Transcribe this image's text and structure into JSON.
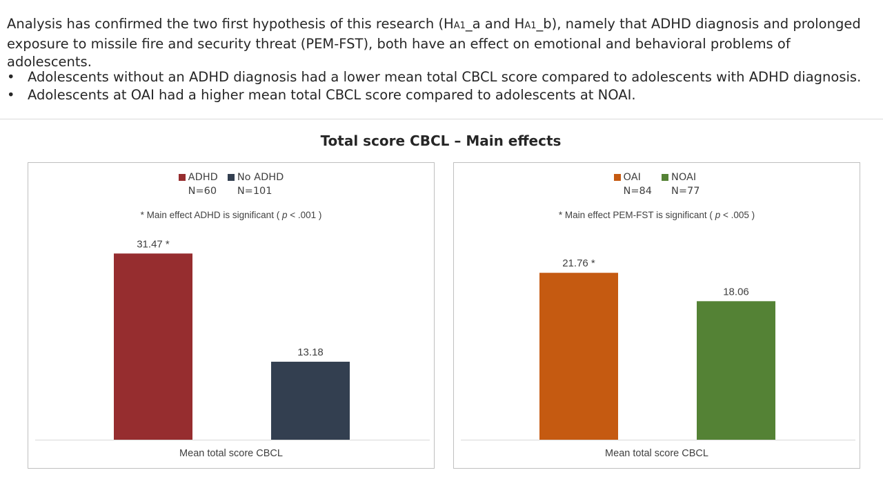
{
  "intro": {
    "text_before": "Analysis has confirmed the two first hypothesis of this research (H",
    "sub_a": "A1",
    "text_mid": "_a and H",
    "sub_b": "A1",
    "text_after": "_b), namely that ADHD diagnosis and prolonged exposure to missile fire and security threat (PEM-FST), both have an effect on emotional and behavioral problems of adolescents."
  },
  "bullets": [
    {
      "marker": "•",
      "text": "Adolescents without an ADHD diagnosis had a lower mean total CBCL score compared to adolescents with ADHD diagnosis."
    },
    {
      "marker": "•",
      "text": "Adolescents at OAI had a higher mean total CBCL score compared to adolescents at NOAI."
    }
  ],
  "main_title": "Total score CBCL – Main effects",
  "chart_data": [
    {
      "type": "bar",
      "categories": [
        "Mean total score CBCL"
      ],
      "series": [
        {
          "name": "ADHD",
          "n_label": "N=60",
          "values": [
            31.47
          ],
          "label": "31.47 *",
          "color": "#962d2f"
        },
        {
          "name": "No ADHD",
          "n_label": "N=101",
          "values": [
            13.18
          ],
          "label": "13.18",
          "color": "#333f50"
        }
      ],
      "note": {
        "prefix": "* Main effect ADHD is significant  ( ",
        "p": "p",
        "suffix": " < .001 )"
      },
      "ylim": [
        0,
        35
      ],
      "grid": false,
      "legend": "top-center"
    },
    {
      "type": "bar",
      "categories": [
        "Mean total score CBCL"
      ],
      "series": [
        {
          "name": "OAI",
          "n_label": "N=84",
          "values": [
            21.76
          ],
          "label": "21.76 *",
          "color": "#c55a11"
        },
        {
          "name": "NOAI",
          "n_label": "N=77",
          "values": [
            18.06
          ],
          "label": "18.06",
          "color": "#548235"
        }
      ],
      "note": {
        "prefix": "* Main effect PEM-FST is significant  ( ",
        "p": "p",
        "suffix": " < .005 )"
      },
      "ylim": [
        0,
        27
      ],
      "grid": false,
      "legend": "top-center"
    }
  ]
}
